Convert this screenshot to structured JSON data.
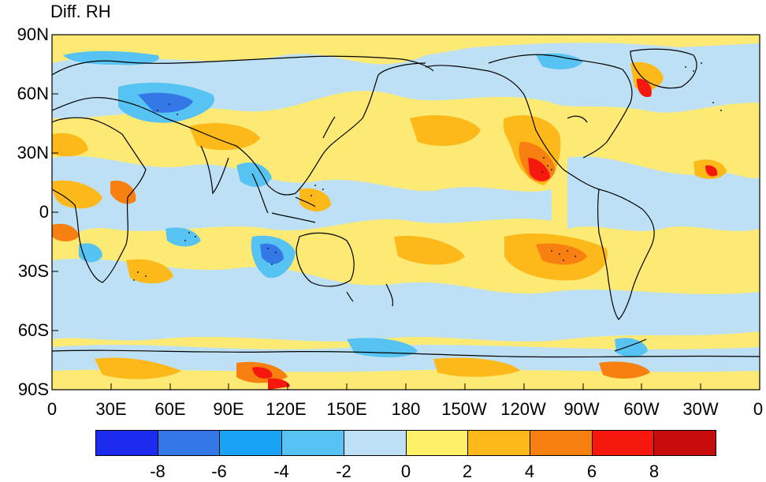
{
  "title": "Diff. RH",
  "lat_labels": [
    "90N",
    "60N",
    "30N",
    "0",
    "30S",
    "60S",
    "90S"
  ],
  "lon_labels": [
    "0",
    "30E",
    "60E",
    "90E",
    "120E",
    "150E",
    "180",
    "150W",
    "120W",
    "90W",
    "60W",
    "30W",
    "0"
  ],
  "colorbar": {
    "colors": [
      "#1b2cf0",
      "#3478e8",
      "#19a3f5",
      "#57c3f2",
      "#bde0f5",
      "#fff06a",
      "#fdb81a",
      "#f88010",
      "#f6180e",
      "#c60c0c"
    ],
    "labels": [
      "-8",
      "-6",
      "-4",
      "-2",
      "0",
      "2",
      "4",
      "6",
      "8"
    ]
  },
  "map_colors": {
    "ocean_base": "#fdea75",
    "coast": "#000000"
  }
}
